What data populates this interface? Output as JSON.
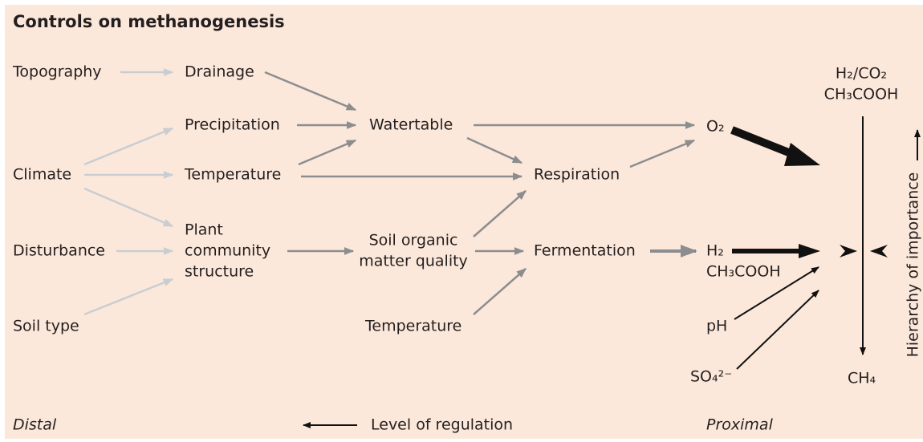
{
  "title": "Controls on methanogenesis",
  "nodes": [
    {
      "lines": [
        "Topography"
      ]
    },
    {
      "lines": [
        "Drainage"
      ]
    },
    {
      "lines": [
        "Precipitation"
      ]
    },
    {
      "lines": [
        "Watertable"
      ]
    },
    {
      "lines": [
        "O₂"
      ]
    },
    {
      "lines": [
        "Climate"
      ]
    },
    {
      "lines": [
        "Temperature"
      ]
    },
    {
      "lines": [
        "Respiration"
      ]
    },
    {
      "lines": [
        "Disturbance"
      ]
    },
    {
      "lines": [
        "Plant",
        "community",
        "structure"
      ]
    },
    {
      "lines": [
        "Soil organic",
        "matter quality"
      ]
    },
    {
      "lines": [
        "Fermentation"
      ]
    },
    {
      "lines": [
        "H₂",
        "CH₃COOH"
      ]
    },
    {
      "lines": [
        "Soil type"
      ]
    },
    {
      "lines": [
        "Temperature"
      ]
    },
    {
      "lines": [
        "pH"
      ]
    },
    {
      "lines": [
        "SO₄²⁻"
      ]
    },
    {
      "lines": [
        "H₂/CO₂",
        "CH₃COOH"
      ]
    },
    {
      "lines": [
        "CH₄"
      ]
    }
  ],
  "footer": {
    "left": "Distal",
    "center": "Level of regulation",
    "right": "Proximal"
  },
  "side_label": "Hierarchy of importance"
}
